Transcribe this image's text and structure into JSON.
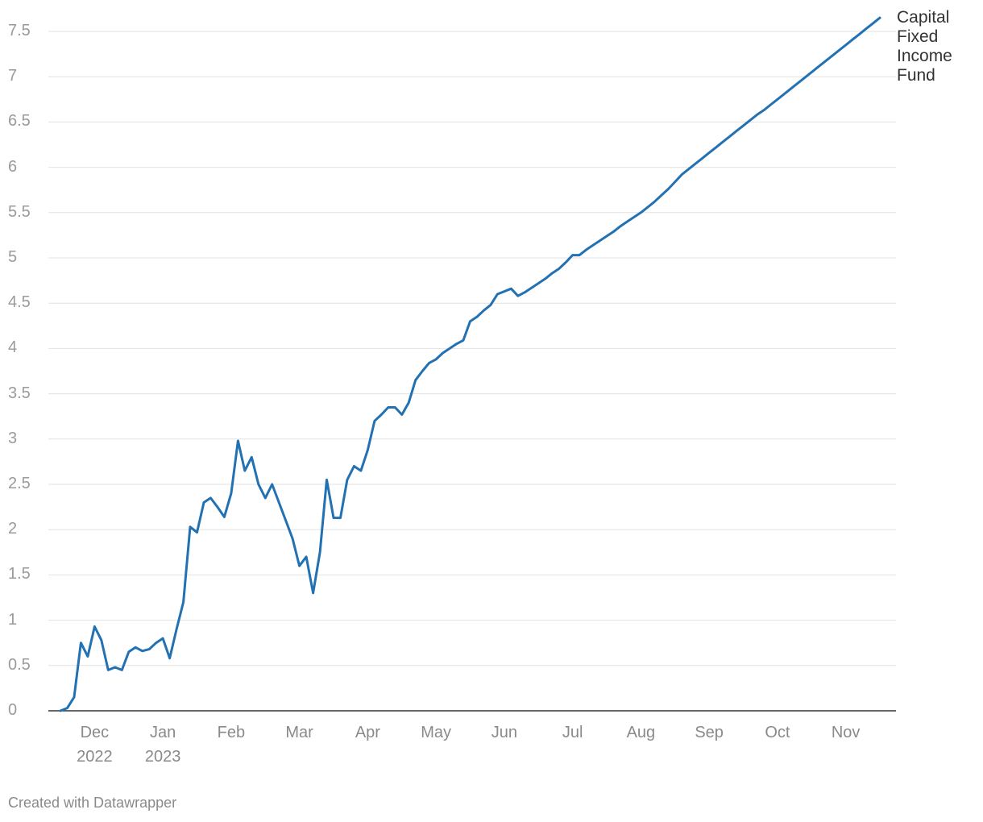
{
  "chart_data": {
    "type": "line",
    "categories": [
      null,
      null,
      null,
      null,
      null,
      "Dec\n2022",
      null,
      null,
      null,
      null,
      null,
      null,
      null,
      null,
      null,
      "Jan\n2023",
      null,
      null,
      null,
      null,
      null,
      null,
      null,
      null,
      null,
      "Feb",
      null,
      null,
      null,
      null,
      null,
      null,
      null,
      null,
      null,
      "Mar",
      null,
      null,
      null,
      null,
      null,
      null,
      null,
      null,
      null,
      "Apr",
      null,
      null,
      null,
      null,
      null,
      null,
      null,
      null,
      null,
      "May",
      null,
      null,
      null,
      null,
      null,
      null,
      null,
      null,
      null,
      "Jun",
      null,
      null,
      null,
      null,
      null,
      null,
      null,
      null,
      null,
      "Jul",
      null,
      null,
      null,
      null,
      null,
      null,
      null,
      null,
      null,
      "Aug",
      null,
      null,
      null,
      null,
      null,
      null,
      null,
      null,
      null,
      "Sep",
      null,
      null,
      null,
      null,
      null,
      null,
      null,
      null,
      null,
      "Oct",
      null,
      null,
      null,
      null,
      null,
      null,
      null,
      null,
      null,
      "Nov",
      null,
      null,
      null,
      null,
      null
    ],
    "series": [
      {
        "name": "Capital Fixed Income Fund",
        "color": "#2271b3",
        "values": [
          0,
          0.03,
          0.15,
          0.75,
          0.6,
          0.93,
          0.78,
          0.45,
          0.48,
          0.45,
          0.65,
          0.7,
          0.66,
          0.68,
          0.75,
          0.8,
          0.58,
          0.9,
          1.2,
          2.03,
          1.97,
          2.3,
          2.35,
          2.25,
          2.14,
          2.4,
          2.98,
          2.65,
          2.8,
          2.5,
          2.35,
          2.5,
          2.3,
          2.1,
          1.9,
          1.6,
          1.7,
          1.3,
          1.75,
          2.55,
          2.13,
          2.13,
          2.55,
          2.7,
          2.65,
          2.88,
          3.2,
          3.27,
          3.35,
          3.35,
          3.27,
          3.4,
          3.65,
          3.75,
          3.84,
          3.88,
          3.95,
          4.0,
          4.05,
          4.09,
          4.3,
          4.35,
          4.42,
          4.48,
          4.6,
          4.63,
          4.66,
          4.58,
          4.62,
          4.67,
          4.72,
          4.77,
          4.83,
          4.88,
          4.95,
          5.03,
          5.03,
          5.09,
          5.14,
          5.19,
          5.24,
          5.29,
          5.35,
          5.4,
          5.45,
          5.5,
          5.56,
          5.62,
          5.69,
          5.76,
          5.84,
          5.92,
          5.98,
          6.04,
          6.1,
          6.16,
          6.22,
          6.28,
          6.34,
          6.4,
          6.46,
          6.52,
          6.58,
          6.63,
          6.69,
          6.75,
          6.81,
          6.87,
          6.93,
          6.99,
          7.05,
          7.11,
          7.17,
          7.23,
          7.29,
          7.35,
          7.41,
          7.47,
          7.53,
          7.59,
          7.65
        ]
      }
    ],
    "ylim": [
      0,
      7.5
    ],
    "yticks": [
      0,
      0.5,
      1,
      1.5,
      2,
      2.5,
      3,
      3.5,
      4,
      4.5,
      5,
      5.5,
      6,
      6.5,
      7,
      7.5
    ],
    "grid": true,
    "footer": "Created with Datawrapper"
  }
}
